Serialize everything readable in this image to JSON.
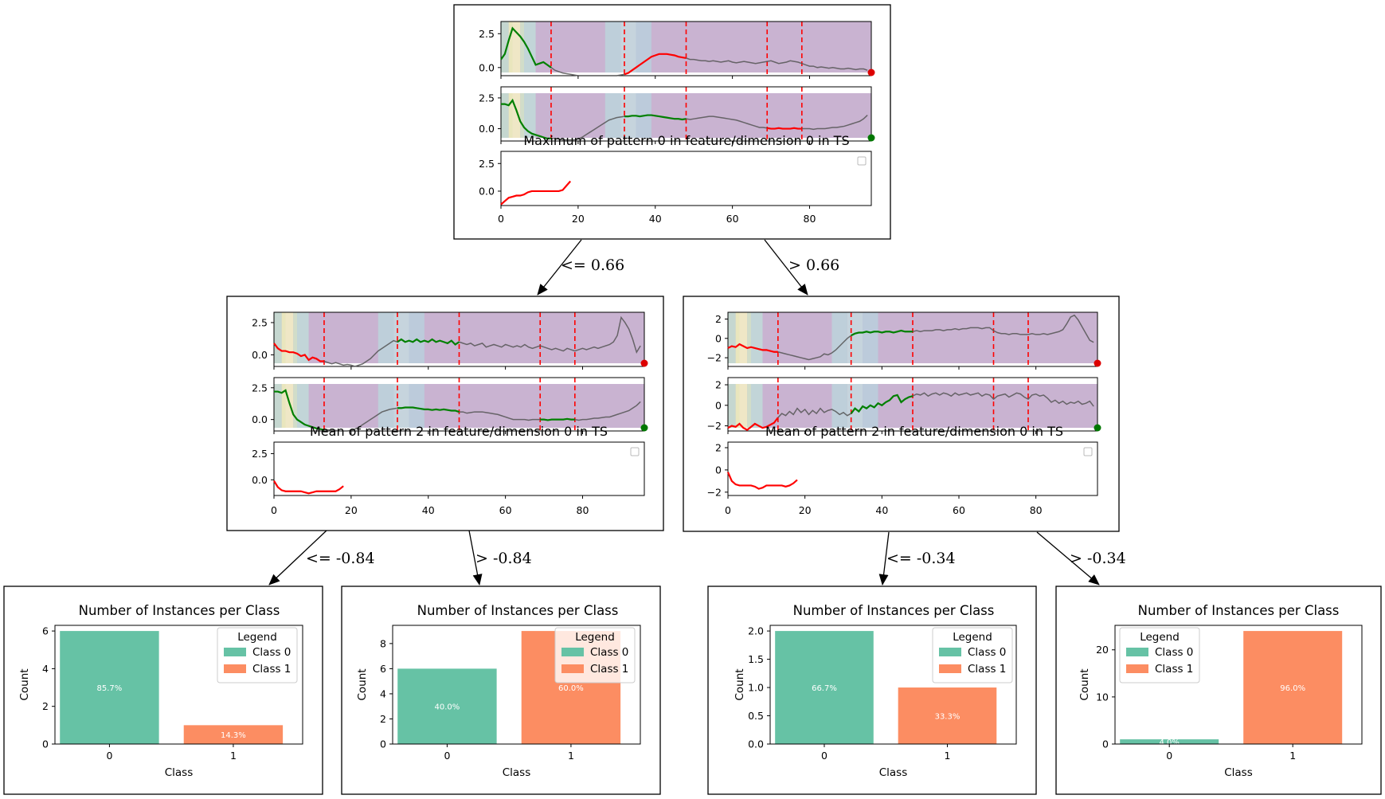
{
  "colors": {
    "class0": "#66c2a5",
    "class1": "#fc8d62",
    "highlight_green": "#008000",
    "highlight_red": "#ff0000",
    "split_line": "#ff0000",
    "series_gray": "#555555",
    "heatmap_base": "#c9b3d1"
  },
  "edges": [
    {
      "id": "root-left",
      "label": "<= 0.66"
    },
    {
      "id": "root-right",
      "label": "> 0.66"
    },
    {
      "id": "left-leaf0",
      "label": "<= -0.84"
    },
    {
      "id": "left-leaf1",
      "label": "> -0.84"
    },
    {
      "id": "right-leaf2",
      "label": "<= -0.34"
    },
    {
      "id": "right-leaf3",
      "label": "> -0.34"
    }
  ],
  "chart_data": [
    {
      "type": "line",
      "node": "root",
      "title": "Maximum of pattern 0 in feature/dimension 0 in TS",
      "xticks": [
        0,
        20,
        40,
        60,
        80
      ],
      "xlim": [
        0,
        96
      ],
      "split_x": [
        13,
        32,
        48,
        69,
        78
      ],
      "panels": [
        {
          "name": "series-a",
          "yticks": [
            "2.5",
            "0.0"
          ],
          "ylim": [
            -0.6,
            3.4
          ],
          "end_marker": "red",
          "values": [
            0.6,
            1.0,
            2.0,
            2.9,
            2.6,
            2.3,
            1.9,
            1.4,
            0.8,
            0.2,
            0.3,
            0.4,
            0.2,
            0.0,
            -0.2,
            -0.3,
            -0.4,
            -0.45,
            -0.5,
            -0.55,
            -0.6,
            -0.6,
            -0.6,
            -0.6,
            -0.6,
            -0.6,
            -0.6,
            -0.6,
            -0.6,
            -0.6,
            -0.6,
            -0.55,
            -0.5,
            -0.4,
            -0.2,
            0.0,
            0.2,
            0.4,
            0.6,
            0.8,
            0.9,
            1.0,
            1.0,
            1.0,
            0.95,
            0.9,
            0.8,
            0.75,
            0.7,
            0.6,
            0.6,
            0.55,
            0.5,
            0.5,
            0.45,
            0.5,
            0.45,
            0.4,
            0.45,
            0.5,
            0.4,
            0.35,
            0.4,
            0.45,
            0.4,
            0.35,
            0.3,
            0.35,
            0.4,
            0.45,
            0.5,
            0.4,
            0.3,
            0.35,
            0.4,
            0.5,
            0.45,
            0.4,
            0.3,
            0.2,
            0.1,
            0.1,
            0.0,
            0.05,
            0.0,
            -0.05,
            0.0,
            -0.05,
            -0.1,
            -0.1,
            -0.05,
            -0.1,
            -0.15,
            -0.1,
            -0.1,
            -0.2
          ],
          "segments": [
            {
              "from": 0,
              "to": 13,
              "color": "green"
            },
            {
              "from": 32,
              "to": 48,
              "color": "red"
            }
          ]
        },
        {
          "name": "series-b",
          "yticks": [
            "2.5",
            "0.0"
          ],
          "ylim": [
            -1.0,
            3.4
          ],
          "end_marker": "green",
          "values": [
            2.0,
            2.0,
            1.9,
            2.3,
            1.5,
            0.6,
            0.1,
            -0.2,
            -0.4,
            -0.5,
            -0.6,
            -0.7,
            -0.8,
            -0.8,
            -0.8,
            -0.85,
            -0.9,
            -0.9,
            -0.9,
            -0.9,
            -0.85,
            -0.7,
            -0.5,
            -0.3,
            -0.1,
            0.1,
            0.3,
            0.5,
            0.7,
            0.8,
            0.9,
            0.95,
            1.0,
            1.0,
            1.05,
            1.05,
            1.0,
            1.05,
            1.1,
            1.1,
            1.05,
            1.0,
            0.95,
            0.9,
            0.85,
            0.8,
            0.8,
            0.75,
            0.8,
            0.75,
            0.8,
            0.85,
            0.9,
            0.95,
            1.0,
            1.0,
            0.95,
            0.9,
            0.85,
            0.8,
            0.75,
            0.7,
            0.6,
            0.5,
            0.4,
            0.3,
            0.2,
            0.1,
            0.1,
            0.05,
            0.0,
            0.0,
            0.05,
            0.0,
            0.0,
            0.0,
            0.05,
            0.0,
            0.0,
            0.0,
            0.0,
            -0.05,
            0.0,
            0.0,
            0.0,
            0.05,
            0.1,
            0.1,
            0.15,
            0.2,
            0.3,
            0.4,
            0.5,
            0.6,
            0.8,
            1.1
          ],
          "segments": [
            {
              "from": 0,
              "to": 13,
              "color": "green"
            },
            {
              "from": 32,
              "to": 48,
              "color": "green"
            },
            {
              "from": 69,
              "to": 78,
              "color": "red"
            }
          ]
        },
        {
          "name": "pattern",
          "yticks": [
            "2.5",
            "0.0"
          ],
          "ylim": [
            -1.3,
            3.6
          ],
          "legend_box": true,
          "values": [
            -1.2,
            -0.9,
            -0.6,
            -0.5,
            -0.4,
            -0.4,
            -0.3,
            -0.1,
            0.0,
            0.0,
            0.0,
            0.0,
            0.0,
            0.0,
            0.0,
            0.0,
            0.1,
            0.5,
            0.9
          ],
          "segments": [
            {
              "from": 0,
              "to": 18,
              "color": "red"
            }
          ]
        }
      ]
    },
    {
      "type": "line",
      "node": "left",
      "title": "Mean of pattern 2 in feature/dimension 0 in TS",
      "xticks": [
        0,
        20,
        40,
        60,
        80
      ],
      "xlim": [
        0,
        96
      ],
      "split_x": [
        13,
        32,
        48,
        69,
        78
      ],
      "panels": [
        {
          "name": "series-a",
          "yticks": [
            "2.5",
            "0.0"
          ],
          "ylim": [
            -0.9,
            3.3
          ],
          "end_marker": "red",
          "values": [
            0.9,
            0.5,
            0.3,
            0.3,
            0.2,
            0.2,
            0.1,
            -0.1,
            0.0,
            -0.4,
            -0.2,
            -0.3,
            -0.5,
            -0.5,
            -0.6,
            -0.7,
            -0.6,
            -0.7,
            -0.8,
            -0.75,
            -0.8,
            -0.9,
            -0.8,
            -0.7,
            -0.5,
            -0.3,
            0.0,
            0.3,
            0.5,
            0.7,
            0.9,
            1.1,
            1.0,
            1.2,
            1.0,
            1.1,
            1.0,
            1.2,
            1.0,
            1.1,
            1.0,
            1.2,
            1.0,
            1.1,
            1.0,
            0.9,
            1.1,
            0.8,
            1.0,
            0.9,
            0.8,
            0.9,
            0.7,
            0.8,
            0.9,
            0.6,
            0.7,
            0.8,
            0.7,
            0.6,
            0.8,
            0.7,
            0.6,
            0.7,
            0.6,
            0.8,
            0.6,
            0.5,
            0.6,
            0.7,
            0.6,
            0.5,
            0.4,
            0.5,
            0.4,
            0.3,
            0.5,
            0.4,
            0.3,
            0.4,
            0.5,
            0.4,
            0.5,
            0.6,
            0.5,
            0.6,
            0.7,
            0.8,
            1.0,
            1.5,
            2.9,
            2.5,
            2.0,
            1.2,
            0.2,
            0.7
          ],
          "segments": [
            {
              "from": 0,
              "to": 13,
              "color": "red"
            },
            {
              "from": 32,
              "to": 48,
              "color": "green"
            }
          ]
        },
        {
          "name": "series-b",
          "yticks": [
            "2.5",
            "0.0"
          ],
          "ylim": [
            -0.9,
            3.3
          ],
          "end_marker": "green",
          "values": [
            2.2,
            2.2,
            2.1,
            2.3,
            1.3,
            0.4,
            0.0,
            -0.2,
            -0.4,
            -0.5,
            -0.6,
            -0.7,
            -0.75,
            -0.8,
            -0.8,
            -0.85,
            -0.85,
            -0.9,
            -0.9,
            -0.9,
            -0.85,
            -0.75,
            -0.6,
            -0.4,
            -0.2,
            0.0,
            0.2,
            0.4,
            0.6,
            0.7,
            0.8,
            0.85,
            0.9,
            0.9,
            0.95,
            0.95,
            0.95,
            0.9,
            0.85,
            0.8,
            0.8,
            0.75,
            0.8,
            0.75,
            0.8,
            0.75,
            0.7,
            0.7,
            0.6,
            0.6,
            0.5,
            0.55,
            0.6,
            0.6,
            0.6,
            0.55,
            0.5,
            0.45,
            0.4,
            0.3,
            0.2,
            0.1,
            0.0,
            0.0,
            0.0,
            0.0,
            -0.05,
            0.0,
            0.0,
            0.0,
            0.0,
            -0.05,
            0.0,
            0.0,
            0.0,
            0.0,
            0.05,
            0.0,
            0.0,
            -0.05,
            0.0,
            0.0,
            0.05,
            0.1,
            0.1,
            0.15,
            0.2,
            0.2,
            0.3,
            0.4,
            0.5,
            0.6,
            0.7,
            0.9,
            1.1,
            1.4
          ],
          "segments": [
            {
              "from": 0,
              "to": 13,
              "color": "green"
            },
            {
              "from": 32,
              "to": 48,
              "color": "green"
            },
            {
              "from": 69,
              "to": 78,
              "color": "green"
            }
          ]
        },
        {
          "name": "pattern",
          "yticks": [
            "2.5",
            "0.0"
          ],
          "ylim": [
            -1.5,
            3.6
          ],
          "legend_box": true,
          "values": [
            -0.1,
            -0.7,
            -1.0,
            -1.1,
            -1.1,
            -1.1,
            -1.1,
            -1.1,
            -1.2,
            -1.3,
            -1.2,
            -1.1,
            -1.1,
            -1.1,
            -1.1,
            -1.1,
            -1.1,
            -0.9,
            -0.6
          ],
          "segments": [
            {
              "from": 0,
              "to": 18,
              "color": "red"
            }
          ]
        }
      ]
    },
    {
      "type": "line",
      "node": "right",
      "title": "Mean of pattern 2 in feature/dimension 0 in TS",
      "xticks": [
        0,
        20,
        40,
        60,
        80
      ],
      "xlim": [
        0,
        96
      ],
      "split_x": [
        13,
        32,
        48,
        69,
        78
      ],
      "panels": [
        {
          "name": "series-a",
          "yticks": [
            "2",
            "0",
            "−2"
          ],
          "ylim": [
            -2.9,
            2.7
          ],
          "end_marker": "red",
          "values": [
            -1.0,
            -0.8,
            -0.9,
            -0.6,
            -0.8,
            -1.0,
            -0.9,
            -1.0,
            -1.1,
            -1.2,
            -1.2,
            -1.3,
            -1.4,
            -1.4,
            -1.5,
            -1.6,
            -1.7,
            -1.8,
            -1.9,
            -2.0,
            -2.1,
            -2.2,
            -2.1,
            -2.0,
            -1.9,
            -1.6,
            -1.7,
            -1.5,
            -1.2,
            -0.8,
            -0.4,
            0.0,
            0.3,
            0.5,
            0.6,
            0.6,
            0.7,
            0.6,
            0.7,
            0.7,
            0.6,
            0.7,
            0.7,
            0.6,
            0.7,
            0.8,
            0.7,
            0.7,
            0.7,
            0.8,
            0.7,
            0.8,
            0.8,
            0.8,
            0.9,
            0.9,
            0.8,
            0.9,
            0.9,
            1.0,
            0.9,
            1.0,
            1.0,
            1.1,
            1.1,
            1.1,
            1.0,
            1.1,
            1.1,
            0.8,
            0.6,
            0.5,
            0.5,
            0.4,
            0.5,
            0.5,
            0.4,
            0.4,
            0.4,
            0.5,
            0.4,
            0.4,
            0.5,
            0.4,
            0.5,
            0.6,
            0.7,
            0.9,
            1.5,
            2.2,
            2.4,
            1.9,
            1.2,
            0.5,
            -0.2,
            -0.4
          ],
          "segments": [
            {
              "from": 0,
              "to": 13,
              "color": "red"
            },
            {
              "from": 32,
              "to": 48,
              "color": "green"
            }
          ]
        },
        {
          "name": "series-b",
          "yticks": [
            "2",
            "0",
            "−2"
          ],
          "ylim": [
            -2.5,
            2.7
          ],
          "end_marker": "green",
          "values": [
            -2.2,
            -2.0,
            -2.1,
            -1.8,
            -2.2,
            -2.4,
            -2.1,
            -1.8,
            -2.0,
            -2.2,
            -2.1,
            -1.9,
            -1.7,
            -1.2,
            -0.8,
            -1.0,
            -0.6,
            -0.9,
            -0.3,
            -0.7,
            -0.4,
            -0.9,
            -0.5,
            -0.8,
            -0.3,
            -0.7,
            -0.5,
            -0.4,
            -0.6,
            -0.9,
            -0.7,
            -1.0,
            -0.8,
            -0.3,
            -0.6,
            -0.1,
            -0.3,
            0.0,
            -0.2,
            0.2,
            0.0,
            0.3,
            0.5,
            0.9,
            1.0,
            0.3,
            0.6,
            0.8,
            0.9,
            1.1,
            1.0,
            1.2,
            0.9,
            1.1,
            1.2,
            1.0,
            1.2,
            1.1,
            0.9,
            1.2,
            1.0,
            1.1,
            1.2,
            1.0,
            1.1,
            1.2,
            0.9,
            1.1,
            1.0,
            0.6,
            0.9,
            1.0,
            1.1,
            0.8,
            1.0,
            1.2,
            1.1,
            0.8,
            0.6,
            1.0,
            1.1,
            0.9,
            1.0,
            0.7,
            0.3,
            0.5,
            0.2,
            0.4,
            0.1,
            0.3,
            0.2,
            0.4,
            0.1,
            0.2,
            0.4,
            -0.1
          ],
          "segments": [
            {
              "from": 0,
              "to": 13,
              "color": "red"
            },
            {
              "from": 32,
              "to": 48,
              "color": "green"
            }
          ]
        },
        {
          "name": "pattern",
          "yticks": [
            "2",
            "0",
            "−2"
          ],
          "ylim": [
            -2.3,
            2.5
          ],
          "legend_box": true,
          "values": [
            -0.2,
            -1.0,
            -1.3,
            -1.4,
            -1.4,
            -1.4,
            -1.4,
            -1.5,
            -1.7,
            -1.6,
            -1.4,
            -1.4,
            -1.4,
            -1.4,
            -1.4,
            -1.5,
            -1.4,
            -1.2,
            -0.9
          ],
          "segments": [
            {
              "from": 0,
              "to": 18,
              "color": "red"
            }
          ]
        }
      ]
    },
    {
      "type": "bar",
      "node": "leaf-0",
      "title": "Number of Instances per Class",
      "xlabel": "Class",
      "ylabel": "Count",
      "categories": [
        "0",
        "1"
      ],
      "values": [
        6,
        1
      ],
      "percent_labels": [
        "85.7%",
        "14.3%"
      ],
      "yticks": [
        0,
        2,
        4,
        6
      ],
      "ylim": [
        0,
        6.3
      ],
      "legend": {
        "title": "Legend",
        "entries": [
          "Class 0",
          "Class 1"
        ],
        "placement": "upper-right"
      }
    },
    {
      "type": "bar",
      "node": "leaf-1",
      "title": "Number of Instances per Class",
      "xlabel": "Class",
      "ylabel": "Count",
      "categories": [
        "0",
        "1"
      ],
      "values": [
        6,
        9
      ],
      "percent_labels": [
        "40.0%",
        "60.0%"
      ],
      "yticks": [
        0,
        2,
        4,
        6,
        8
      ],
      "ylim": [
        0,
        9.45
      ],
      "legend": {
        "title": "Legend",
        "entries": [
          "Class 0",
          "Class 1"
        ],
        "placement": "upper-right"
      }
    },
    {
      "type": "bar",
      "node": "leaf-2",
      "title": "Number of Instances per Class",
      "xlabel": "Class",
      "ylabel": "Count",
      "categories": [
        "0",
        "1"
      ],
      "values": [
        2,
        1
      ],
      "percent_labels": [
        "66.7%",
        "33.3%"
      ],
      "yticks": [
        "0.0",
        "0.5",
        "1.0",
        "1.5",
        "2.0"
      ],
      "ylim": [
        0,
        2.1
      ],
      "legend": {
        "title": "Legend",
        "entries": [
          "Class 0",
          "Class 1"
        ],
        "placement": "upper-right"
      }
    },
    {
      "type": "bar",
      "node": "leaf-3",
      "title": "Number of Instances per Class",
      "xlabel": "Class",
      "ylabel": "Count",
      "categories": [
        "0",
        "1"
      ],
      "values": [
        1,
        24
      ],
      "percent_labels": [
        "4.0%",
        "96.0%"
      ],
      "yticks": [
        0,
        10,
        20
      ],
      "ylim": [
        0,
        25.2
      ],
      "legend": {
        "title": "Legend",
        "entries": [
          "Class 0",
          "Class 1"
        ],
        "placement": "upper-left"
      }
    }
  ]
}
